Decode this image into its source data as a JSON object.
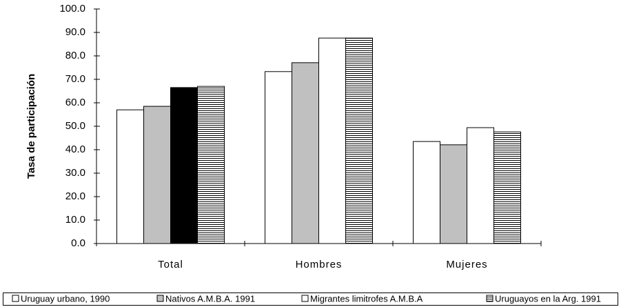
{
  "chart_data": {
    "type": "bar",
    "y_label": "Tasa de participación",
    "categories": [
      "Total",
      "Hombres",
      "Mujeres"
    ],
    "series": [
      {
        "name": "Uruguay urbano, 1990",
        "color": "#ffffff",
        "values": [
          57.0,
          73.3,
          43.5
        ]
      },
      {
        "name": "Nativos A.M.B.A. 1991",
        "color": "#c0c0c0",
        "values": [
          58.5,
          77.1,
          42.1
        ]
      },
      {
        "name": "Migrantes limitrofes A.M.B.A",
        "color": "#ffffff",
        "point_colors": [
          "#000000",
          "#ffffff",
          "#ffffff"
        ],
        "values": [
          66.5,
          87.6,
          49.4
        ]
      },
      {
        "name": "Uruguayos en la Arg. 1991",
        "color": "#ffffff",
        "pattern": "horizontal-lines",
        "values": [
          67.0,
          87.6,
          47.6
        ]
      }
    ],
    "ylim": [
      0,
      100
    ],
    "yticks": [
      {
        "value": 0,
        "label": "0.0"
      },
      {
        "value": 10,
        "label": "10.0"
      },
      {
        "value": 20,
        "label": "20.0"
      },
      {
        "value": 30,
        "label": "30.0"
      },
      {
        "value": 40,
        "label": "40.0"
      },
      {
        "value": 50,
        "label": "50.0"
      },
      {
        "value": 60,
        "label": "60.0"
      },
      {
        "value": 70,
        "label": "70.0"
      },
      {
        "value": 80,
        "label": "80.0"
      },
      {
        "value": 90,
        "label": "90.0"
      },
      {
        "value": 100,
        "label": "100.0"
      }
    ],
    "grid": false,
    "legend": "bottom"
  }
}
